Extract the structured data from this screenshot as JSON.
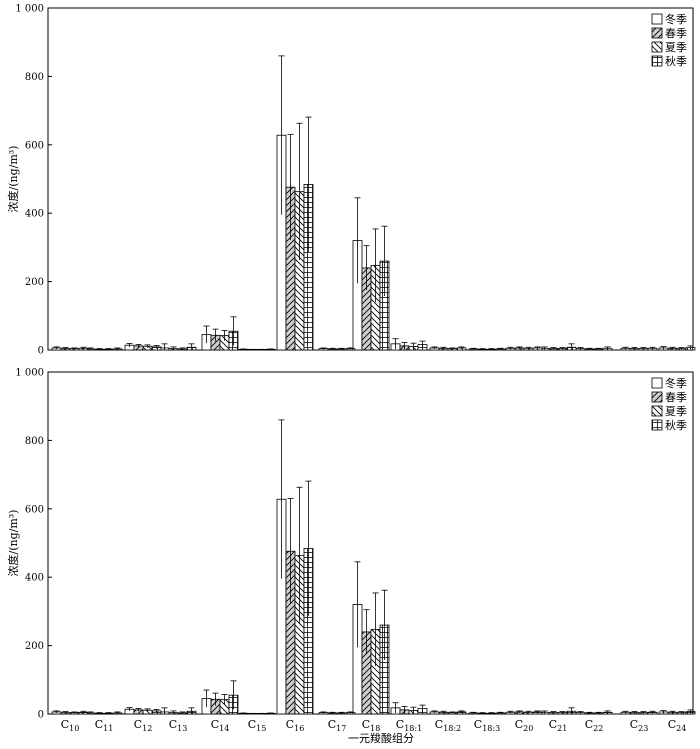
{
  "figure": {
    "xlabel": "一元羧酸组分",
    "ylabel": "浓度/(ng/m³)"
  },
  "chart_data": [
    {
      "type": "bar",
      "ylabel": "浓度/(ng/m³)",
      "ylim": [
        0,
        1000
      ],
      "yticks": [
        "0",
        "200",
        "400",
        "600",
        "800",
        "1 000"
      ],
      "legend_position": "top-right",
      "categories": [
        "C10",
        "C11",
        "C12",
        "C13",
        "C14",
        "C15",
        "C16",
        "C17",
        "C18",
        "C18:1",
        "C18:2",
        "C18:3",
        "C20",
        "C21",
        "C22",
        "C23",
        "C24"
      ],
      "x_tick_labels": [],
      "series": [
        {
          "name": "冬季",
          "pattern": "none",
          "values": [
            6,
            3,
            14,
            6,
            45,
            2,
            628,
            4,
            320,
            18,
            6,
            3,
            5,
            5,
            4,
            5,
            6
          ],
          "errors": [
            3,
            3,
            5,
            12,
            25,
            1,
            232,
            2,
            125,
            15,
            3,
            2,
            3,
            4,
            3,
            3,
            4
          ]
        },
        {
          "name": "春季",
          "pattern": "forward-diagonal",
          "values": [
            4,
            2,
            12,
            4,
            43,
            1,
            476,
            3,
            240,
            12,
            5,
            2,
            6,
            4,
            3,
            4,
            5
          ],
          "errors": [
            3,
            2,
            4,
            5,
            18,
            1,
            154,
            2,
            65,
            10,
            3,
            2,
            3,
            3,
            2,
            3,
            3
          ]
        },
        {
          "name": "夏季",
          "pattern": "back-diagonal",
          "values": [
            4,
            2,
            11,
            3,
            42,
            1,
            463,
            3,
            247,
            10,
            4,
            2,
            5,
            4,
            3,
            4,
            4
          ],
          "errors": [
            2,
            2,
            4,
            3,
            15,
            1,
            200,
            2,
            107,
            10,
            2,
            2,
            3,
            3,
            2,
            3,
            3
          ]
        },
        {
          "name": "秋季",
          "pattern": "grid",
          "values": [
            5,
            3,
            9,
            8,
            55,
            2,
            484,
            4,
            260,
            16,
            6,
            3,
            6,
            8,
            5,
            5,
            7
          ],
          "errors": [
            3,
            3,
            4,
            10,
            42,
            1,
            197,
            2,
            102,
            10,
            3,
            2,
            3,
            10,
            4,
            3,
            5
          ]
        }
      ]
    },
    {
      "type": "bar",
      "ylabel": "浓度/(ng/m³)",
      "ylim": [
        0,
        1000
      ],
      "yticks": [
        "0",
        "200",
        "400",
        "600",
        "800",
        "1 000"
      ],
      "legend_position": "top-right",
      "categories": [
        "C10",
        "C11",
        "C12",
        "C13",
        "C14",
        "C15",
        "C16",
        "C17",
        "C18",
        "C18:1",
        "C18:2",
        "C18:3",
        "C20",
        "C21",
        "C22",
        "C23",
        "C24"
      ],
      "x_tick_labels": [
        {
          "base": "C",
          "sub": "10"
        },
        {
          "base": "C",
          "sub": "11"
        },
        {
          "base": "C",
          "sub": "12"
        },
        {
          "base": "C",
          "sub": "13"
        },
        {
          "base": "C",
          "sub": "14"
        },
        {
          "base": "C",
          "sub": "15"
        },
        {
          "base": "C",
          "sub": "16"
        },
        {
          "base": "C",
          "sub": "17"
        },
        {
          "base": "C",
          "sub": "18"
        },
        {
          "base": "C",
          "sub": "18:1"
        },
        {
          "base": "C",
          "sub": "18:2"
        },
        {
          "base": "C",
          "sub": "18:3"
        },
        {
          "base": "C",
          "sub": "20"
        },
        {
          "base": "C",
          "sub": "21"
        },
        {
          "base": "C",
          "sub": "22"
        },
        {
          "base": "C",
          "sub": "23"
        },
        {
          "base": "C",
          "sub": "24"
        }
      ],
      "series": [
        {
          "name": "冬季",
          "pattern": "none",
          "values": [
            6,
            3,
            14,
            6,
            45,
            2,
            628,
            4,
            320,
            18,
            6,
            3,
            5,
            5,
            4,
            5,
            6
          ],
          "errors": [
            3,
            3,
            5,
            12,
            25,
            1,
            232,
            2,
            125,
            15,
            3,
            2,
            3,
            4,
            3,
            3,
            4
          ]
        },
        {
          "name": "春季",
          "pattern": "forward-diagonal",
          "values": [
            4,
            2,
            12,
            4,
            43,
            1,
            476,
            3,
            240,
            12,
            5,
            2,
            6,
            4,
            3,
            4,
            5
          ],
          "errors": [
            3,
            2,
            4,
            5,
            18,
            1,
            154,
            2,
            65,
            10,
            3,
            2,
            3,
            3,
            2,
            3,
            3
          ]
        },
        {
          "name": "夏季",
          "pattern": "back-diagonal",
          "values": [
            4,
            2,
            11,
            3,
            42,
            1,
            463,
            3,
            247,
            10,
            4,
            2,
            5,
            4,
            3,
            4,
            4
          ],
          "errors": [
            2,
            2,
            4,
            3,
            15,
            1,
            200,
            2,
            107,
            10,
            2,
            2,
            3,
            3,
            2,
            3,
            3
          ]
        },
        {
          "name": "秋季",
          "pattern": "grid",
          "values": [
            5,
            3,
            9,
            8,
            55,
            2,
            484,
            4,
            260,
            16,
            6,
            3,
            6,
            8,
            5,
            5,
            7
          ],
          "errors": [
            3,
            3,
            4,
            10,
            42,
            1,
            197,
            2,
            102,
            10,
            3,
            2,
            3,
            10,
            4,
            3,
            5
          ]
        }
      ]
    }
  ]
}
